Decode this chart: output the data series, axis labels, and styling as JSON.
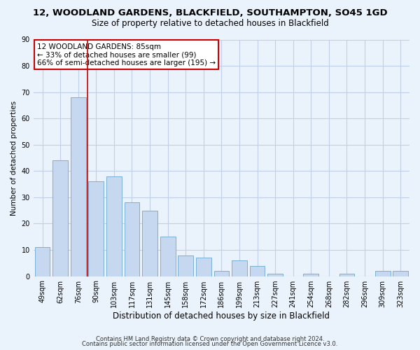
{
  "title1": "12, WOODLAND GARDENS, BLACKFIELD, SOUTHAMPTON, SO45 1GD",
  "title2": "Size of property relative to detached houses in Blackfield",
  "xlabel": "Distribution of detached houses by size in Blackfield",
  "ylabel": "Number of detached properties",
  "bar_labels": [
    "49sqm",
    "62sqm",
    "76sqm",
    "90sqm",
    "103sqm",
    "117sqm",
    "131sqm",
    "145sqm",
    "158sqm",
    "172sqm",
    "186sqm",
    "199sqm",
    "213sqm",
    "227sqm",
    "241sqm",
    "254sqm",
    "268sqm",
    "282sqm",
    "296sqm",
    "309sqm",
    "323sqm"
  ],
  "bar_values": [
    11,
    44,
    68,
    36,
    38,
    28,
    25,
    15,
    8,
    7,
    2,
    6,
    4,
    1,
    0,
    1,
    0,
    1,
    0,
    2,
    2
  ],
  "bar_color": "#c5d8f0",
  "bar_edge_color": "#7aafd4",
  "grid_color": "#c0d0e8",
  "background_color": "#eaf2fb",
  "vline_color": "#cc0000",
  "vline_pos": 2.5,
  "annotation_text": "12 WOODLAND GARDENS: 85sqm\n← 33% of detached houses are smaller (99)\n66% of semi-detached houses are larger (195) →",
  "annotation_box_color": "#ffffff",
  "annotation_box_edge_color": "#cc0000",
  "ylim": [
    0,
    90
  ],
  "yticks": [
    0,
    10,
    20,
    30,
    40,
    50,
    60,
    70,
    80,
    90
  ],
  "footer1": "Contains HM Land Registry data © Crown copyright and database right 2024.",
  "footer2": "Contains public sector information licensed under the Open Government Licence v3.0.",
  "title1_fontsize": 9.5,
  "title2_fontsize": 8.5,
  "xlabel_fontsize": 8.5,
  "ylabel_fontsize": 7.5,
  "tick_fontsize": 7,
  "annotation_fontsize": 7.5,
  "footer_fontsize": 6
}
